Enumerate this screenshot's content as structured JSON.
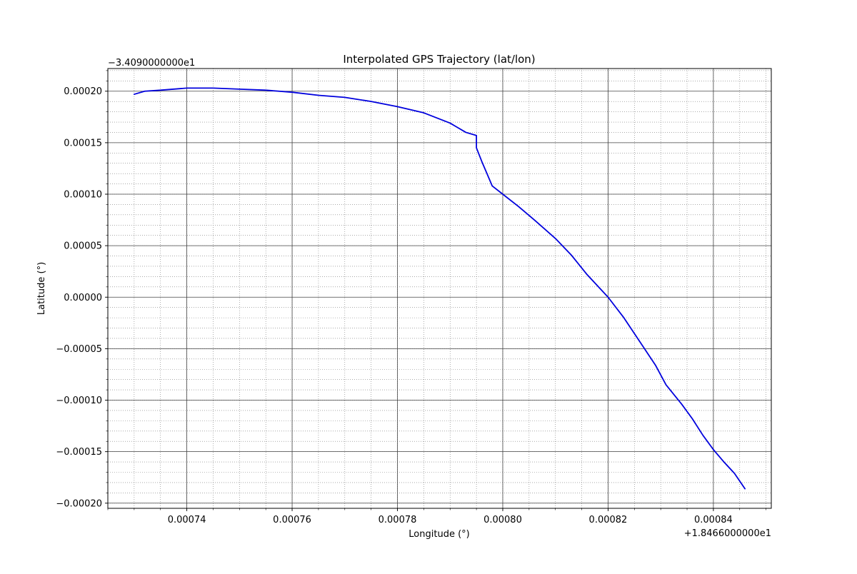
{
  "chart_data": {
    "type": "line",
    "title": "Interpolated GPS Trajectory (lat/lon)",
    "xlabel": "Longitude (°)",
    "ylabel": "Latitude (°)",
    "x_offset_label": "+1.8466000000e1",
    "y_offset_label": "−3.4090000000e1",
    "xlim": [
      0.000725,
      0.000851
    ],
    "ylim": [
      -0.000205,
      0.000222
    ],
    "x_ticks": [
      0.00074,
      0.00076,
      0.00078,
      0.0008,
      0.00082,
      0.00084
    ],
    "x_tick_labels": [
      "0.00074",
      "0.00076",
      "0.00078",
      "0.00080",
      "0.00082",
      "0.00084"
    ],
    "y_ticks": [
      0.0002,
      0.00015,
      0.0001,
      5e-05,
      0.0,
      -5e-05,
      -0.0001,
      -0.00015,
      -0.0002
    ],
    "y_tick_labels": [
      "0.00020",
      "0.00015",
      "0.00010",
      "0.00005",
      "0.00000",
      "−0.00005",
      "−0.00010",
      "−0.00015",
      "−0.00020"
    ],
    "x_minor_step": 5e-06,
    "y_minor_step": 1e-05,
    "grid": true,
    "series_color": "#0000dd",
    "series": [
      {
        "x": [
          0.00073,
          0.000732,
          0.000735,
          0.00074,
          0.000745,
          0.00075,
          0.000755,
          0.00076,
          0.000765,
          0.00077,
          0.000775,
          0.00078,
          0.000785,
          0.00079,
          0.000793,
          0.000795,
          0.000795,
          0.000796,
          0.000797,
          0.000798,
          0.0008,
          0.000803,
          0.000806,
          0.00081,
          0.000813,
          0.000816,
          0.00082,
          0.000823,
          0.000826,
          0.000829,
          0.000831,
          0.000834,
          0.000836,
          0.000838,
          0.00084,
          0.000842,
          0.000844,
          0.000846
        ],
        "y": [
          0.000197,
          0.0002,
          0.000201,
          0.000203,
          0.000203,
          0.000202,
          0.000201,
          0.000199,
          0.000196,
          0.000194,
          0.00019,
          0.000185,
          0.000179,
          0.000169,
          0.00016,
          0.000157,
          0.000145,
          0.000132,
          0.00012,
          0.000108,
          0.0001,
          8.8e-05,
          7.5e-05,
          5.7e-05,
          4.1e-05,
          2.2e-05,
          0.0,
          -2e-05,
          -4.3e-05,
          -6.6e-05,
          -8.5e-05,
          -0.000104,
          -0.000118,
          -0.000134,
          -0.000148,
          -0.00016,
          -0.000171,
          -0.000186
        ]
      }
    ]
  }
}
